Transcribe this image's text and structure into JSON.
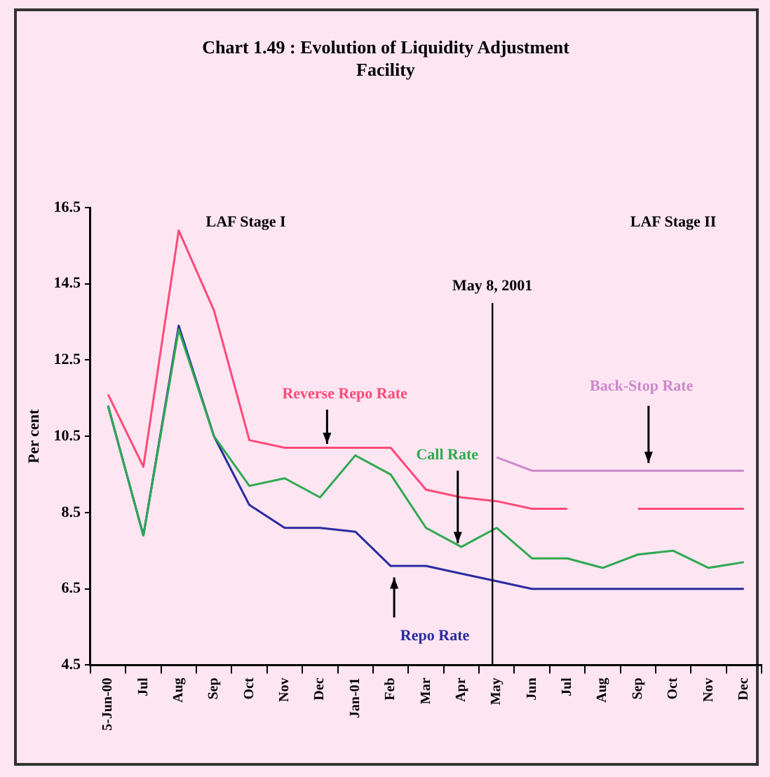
{
  "chart_data": {
    "type": "line",
    "title": "Chart 1.49 : Evolution of Liquidity Adjustment Facility",
    "ylabel": "Per cent",
    "categories": [
      "5-Jun-00",
      "Jul",
      "Aug",
      "Sep",
      "Oct",
      "Nov",
      "Dec",
      "Jan-01",
      "Feb",
      "Mar",
      "Apr",
      "May",
      "Jun",
      "Jul",
      "Aug",
      "Sep",
      "Oct",
      "Nov",
      "Dec"
    ],
    "series": [
      {
        "name": "Reverse Repo Rate",
        "color": "#ff4a78",
        "values": [
          11.6,
          9.7,
          15.9,
          13.8,
          10.4,
          10.2,
          10.2,
          10.2,
          10.2,
          9.1,
          8.9,
          8.8,
          8.6,
          8.6,
          null,
          8.6,
          8.6,
          8.6,
          8.6
        ]
      },
      {
        "name": "Call Rate",
        "color": "#2fa850",
        "values": [
          11.3,
          7.9,
          13.3,
          10.5,
          9.2,
          9.4,
          8.9,
          10.0,
          9.5,
          8.1,
          7.6,
          8.1,
          7.3,
          7.3,
          7.05,
          7.4,
          7.5,
          7.05,
          7.2
        ]
      },
      {
        "name": "Repo Rate",
        "color": "#2a2aa0",
        "values": [
          11.3,
          7.9,
          13.4,
          10.5,
          8.7,
          8.1,
          8.1,
          8.0,
          7.1,
          7.1,
          6.9,
          6.7,
          6.5,
          6.5,
          6.5,
          6.5,
          6.5,
          6.5,
          6.5
        ]
      },
      {
        "name": "Back-Stop Rate",
        "color": "#cc88cc",
        "values": [
          null,
          null,
          null,
          null,
          null,
          null,
          null,
          null,
          null,
          null,
          null,
          9.95,
          9.6,
          9.6,
          9.6,
          9.6,
          9.6,
          9.6,
          9.6
        ]
      }
    ],
    "ylim": [
      4.5,
      16.5
    ],
    "yticks": [
      4.5,
      6.5,
      8.5,
      10.5,
      12.5,
      14.5,
      16.5
    ],
    "ref_lines": [
      {
        "axis": "x",
        "value": "May",
        "label": "May 8, 2001"
      }
    ],
    "annotations": [
      "LAF Stage I",
      "LAF Stage II"
    ],
    "grid": false,
    "legend": false,
    "marker": "none",
    "line_style": "solid"
  }
}
